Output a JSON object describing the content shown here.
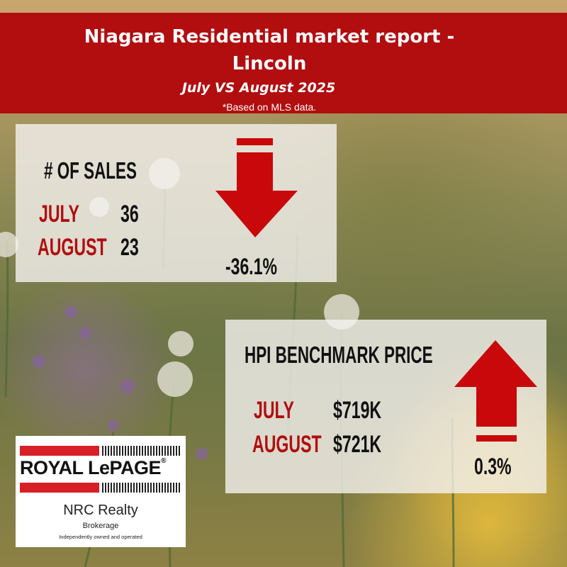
{
  "header": {
    "title_line1": "Niagara Residential market report -",
    "title_line2": "Lincoln",
    "subtitle": "July VS August 2025",
    "note": "*Based on MLS data."
  },
  "sales": {
    "heading": "# OF SALES",
    "rows": [
      {
        "label": "JULY",
        "value": "36"
      },
      {
        "label": "AUGUST",
        "value": "23"
      }
    ],
    "change": "-36.1%",
    "direction": "down"
  },
  "hpi": {
    "heading": "HPI BENCHMARK PRICE",
    "rows": [
      {
        "label": "JULY",
        "value": "$719K"
      },
      {
        "label": "AUGUST",
        "value": "$721K"
      }
    ],
    "change": "0.3%",
    "direction": "up"
  },
  "logo": {
    "brand": "ROYAL LePAGE",
    "registered": "®",
    "office": "NRC Realty",
    "type": "Brokerage",
    "tagline": "Independently owned and operated"
  },
  "colors": {
    "accent_red": "#b20d0f",
    "arrow_red": "#c8080a",
    "logo_red": "#d81f26"
  }
}
